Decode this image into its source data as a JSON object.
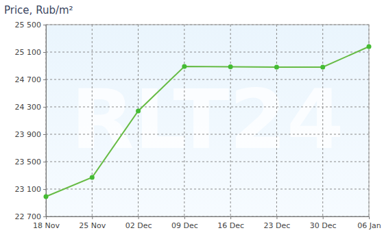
{
  "chart_data": {
    "type": "line",
    "title": "Price, Rub/m²",
    "watermark": "RLT24",
    "categories": [
      "18 Nov",
      "25 Nov",
      "02 Dec",
      "09 Dec",
      "16 Dec",
      "23 Dec",
      "30 Dec",
      "06 Jan"
    ],
    "values": [
      22990,
      23270,
      24240,
      24890,
      24885,
      24880,
      24880,
      25180
    ],
    "color": "#66bb44",
    "marker": "circle",
    "ylim": [
      22700,
      25500
    ],
    "yticks": [
      {
        "value": 22700,
        "label": "22 700"
      },
      {
        "value": 23100,
        "label": "23 100"
      },
      {
        "value": 23500,
        "label": "23 500"
      },
      {
        "value": 23900,
        "label": "23 900"
      },
      {
        "value": 24300,
        "label": "24 300"
      },
      {
        "value": 24700,
        "label": "24 700"
      },
      {
        "value": 25100,
        "label": "25 100"
      },
      {
        "value": 25500,
        "label": "25 500"
      }
    ],
    "grid": true
  }
}
